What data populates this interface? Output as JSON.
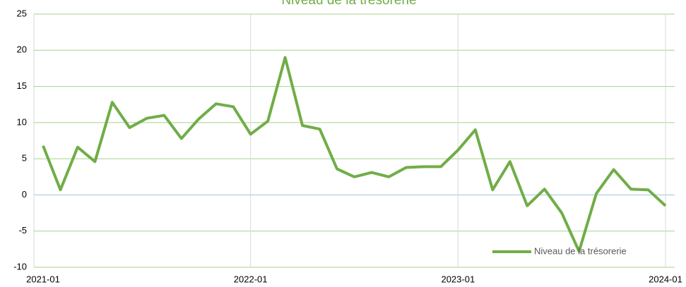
{
  "chart_data": {
    "type": "line",
    "title": "Niveau de la trésorerie",
    "x": [
      "2021-01",
      "2021-02",
      "2021-03",
      "2021-04",
      "2021-05",
      "2021-06",
      "2021-07",
      "2021-08",
      "2021-09",
      "2021-10",
      "2021-11",
      "2021-12",
      "2022-01",
      "2022-02",
      "2022-03",
      "2022-04",
      "2022-05",
      "2022-06",
      "2022-07",
      "2022-08",
      "2022-09",
      "2022-10",
      "2022-11",
      "2022-12",
      "2023-01",
      "2023-02",
      "2023-03",
      "2023-04",
      "2023-05",
      "2023-06",
      "2023-07",
      "2023-08",
      "2023-09",
      "2023-10",
      "2023-11",
      "2023-12",
      "2024-01"
    ],
    "series": [
      {
        "name": "Niveau de la trésorerie",
        "color": "#70ad47",
        "values": [
          6.8,
          0.7,
          6.6,
          4.6,
          12.8,
          9.3,
          10.6,
          11.0,
          7.8,
          10.5,
          12.6,
          12.2,
          8.4,
          10.2,
          19.0,
          9.6,
          9.1,
          3.6,
          2.5,
          3.1,
          2.5,
          3.8,
          3.9,
          3.9,
          6.2,
          9.0,
          0.7,
          4.6,
          -1.5,
          0.8,
          -2.5,
          -7.8,
          0.2,
          3.5,
          0.8,
          0.7,
          -1.5
        ]
      }
    ],
    "xlim": [
      "2021-01",
      "2024-01"
    ],
    "xticks": [
      "2021-01",
      "2022-01",
      "2023-01",
      "2024-01"
    ],
    "ylim": [
      -10,
      25
    ],
    "yticks": [
      -10,
      -5,
      0,
      5,
      10,
      15,
      20,
      25
    ],
    "grid": true,
    "legend": "lower right"
  }
}
